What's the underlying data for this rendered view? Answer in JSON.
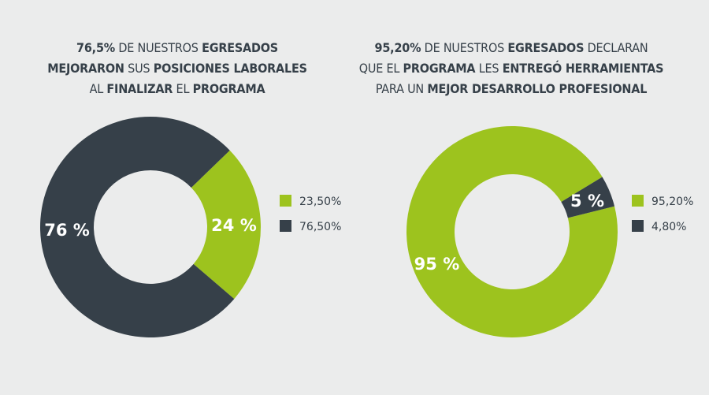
{
  "colors": {
    "green": "#9dc31e",
    "dark": "#364049",
    "background": "#ebecec"
  },
  "chart_data": [
    {
      "type": "pie",
      "variant": "donut",
      "title_lines": [
        [
          {
            "t": "76,5%",
            "b": true
          },
          {
            "t": " DE NUESTROS ",
            "b": false
          },
          {
            "t": "EGRESADOS",
            "b": true
          }
        ],
        [
          {
            "t": "MEJORARON",
            "b": true
          },
          {
            "t": " SUS ",
            "b": false
          },
          {
            "t": "POSICIONES LABORALES",
            "b": true
          }
        ],
        [
          {
            "t": "AL ",
            "b": false
          },
          {
            "t": "FINALIZAR",
            "b": true
          },
          {
            "t": " EL ",
            "b": false
          },
          {
            "t": "PROGRAMA",
            "b": true
          }
        ]
      ],
      "slices": [
        {
          "value": 23.5,
          "slice_label": "24 %",
          "legend": "23,50%",
          "color": "#9dc31e"
        },
        {
          "value": 76.5,
          "slice_label": "76 %",
          "legend": "76,50%",
          "color": "#364049"
        }
      ]
    },
    {
      "type": "pie",
      "variant": "donut",
      "title_lines": [
        [
          {
            "t": "95,20%",
            "b": true
          },
          {
            "t": " DE NUESTROS ",
            "b": false
          },
          {
            "t": "EGRESADOS",
            "b": true
          },
          {
            "t": " DECLARAN",
            "b": false
          }
        ],
        [
          {
            "t": "QUE EL ",
            "b": false
          },
          {
            "t": "PROGRAMA",
            "b": true
          },
          {
            "t": " LES ",
            "b": false
          },
          {
            "t": "ENTREGÓ HERRAMIENTAS",
            "b": true
          }
        ],
        [
          {
            "t": "PARA UN ",
            "b": false
          },
          {
            "t": "MEJOR DESARROLLO PROFESIONAL",
            "b": true
          }
        ]
      ],
      "slices": [
        {
          "value": 95.2,
          "slice_label": "95 %",
          "legend": "95,20%",
          "color": "#9dc31e"
        },
        {
          "value": 4.8,
          "slice_label": "5 %",
          "legend": "4,80%",
          "color": "#364049"
        }
      ]
    }
  ]
}
